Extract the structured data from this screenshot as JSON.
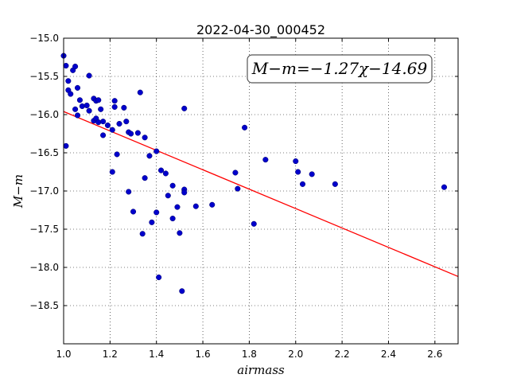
{
  "chart_data": {
    "type": "scatter",
    "title": "2022-04-30_000452",
    "xlabel": "airmass",
    "ylabel": "M−m",
    "xlim": [
      1.0,
      2.7
    ],
    "ylim": [
      -15.0,
      -19.0
    ],
    "y_inverted": true,
    "grid": true,
    "x_ticks": [
      1.0,
      1.2,
      1.4,
      1.6,
      1.8,
      2.0,
      2.2,
      2.4,
      2.6
    ],
    "x_tick_labels": [
      "1.0",
      "1.2",
      "1.4",
      "1.6",
      "1.8",
      "2.0",
      "2.2",
      "2.4",
      "2.6"
    ],
    "y_ticks": [
      -15.0,
      -15.5,
      -16.0,
      -16.5,
      -17.0,
      -17.5,
      -18.0,
      -18.5
    ],
    "y_tick_labels": [
      "−15.0",
      "−15.5",
      "−16.0",
      "−16.5",
      "−17.0",
      "−17.5",
      "−18.0",
      "−18.5"
    ],
    "fit_annotation": "M−m=−1.27χ−14.69",
    "fit": {
      "slope": -1.27,
      "intercept": -14.69,
      "color": "#ff0000"
    },
    "marker_color": "#0000cc",
    "points": [
      [
        1.0,
        -15.23
      ],
      [
        1.01,
        -15.36
      ],
      [
        1.02,
        -15.56
      ],
      [
        1.02,
        -15.68
      ],
      [
        1.03,
        -15.73
      ],
      [
        1.04,
        -15.42
      ],
      [
        1.05,
        -15.37
      ],
      [
        1.06,
        -15.65
      ],
      [
        1.05,
        -15.93
      ],
      [
        1.06,
        -16.01
      ],
      [
        1.07,
        -15.81
      ],
      [
        1.08,
        -15.89
      ],
      [
        1.1,
        -15.88
      ],
      [
        1.11,
        -15.95
      ],
      [
        1.11,
        -15.49
      ],
      [
        1.13,
        -15.79
      ],
      [
        1.14,
        -15.82
      ],
      [
        1.15,
        -15.81
      ],
      [
        1.13,
        -16.08
      ],
      [
        1.14,
        -16.05
      ],
      [
        1.15,
        -16.1
      ],
      [
        1.16,
        -15.93
      ],
      [
        1.17,
        -16.09
      ],
      [
        1.17,
        -16.27
      ],
      [
        1.19,
        -16.14
      ],
      [
        1.21,
        -16.2
      ],
      [
        1.22,
        -15.82
      ],
      [
        1.22,
        -15.9
      ],
      [
        1.23,
        -16.52
      ],
      [
        1.24,
        -16.12
      ],
      [
        1.26,
        -15.91
      ],
      [
        1.27,
        -16.09
      ],
      [
        1.28,
        -16.23
      ],
      [
        1.29,
        -16.25
      ],
      [
        1.32,
        -16.24
      ],
      [
        1.33,
        -15.71
      ],
      [
        1.35,
        -16.3
      ],
      [
        1.01,
        -16.41
      ],
      [
        1.21,
        -16.75
      ],
      [
        1.28,
        -17.01
      ],
      [
        1.3,
        -17.27
      ],
      [
        1.34,
        -17.56
      ],
      [
        1.35,
        -16.83
      ],
      [
        1.37,
        -16.54
      ],
      [
        1.38,
        -17.41
      ],
      [
        1.4,
        -16.48
      ],
      [
        1.4,
        -17.28
      ],
      [
        1.41,
        -18.13
      ],
      [
        1.42,
        -16.73
      ],
      [
        1.44,
        -16.77
      ],
      [
        1.45,
        -17.06
      ],
      [
        1.47,
        -17.36
      ],
      [
        1.47,
        -16.93
      ],
      [
        1.49,
        -17.21
      ],
      [
        1.5,
        -17.55
      ],
      [
        1.51,
        -18.31
      ],
      [
        1.52,
        -16.98
      ],
      [
        1.52,
        -17.02
      ],
      [
        1.52,
        -15.92
      ],
      [
        1.57,
        -17.2
      ],
      [
        1.64,
        -17.18
      ],
      [
        1.74,
        -16.76
      ],
      [
        1.75,
        -16.97
      ],
      [
        1.78,
        -16.17
      ],
      [
        1.82,
        -17.43
      ],
      [
        1.87,
        -16.59
      ],
      [
        2.0,
        -16.61
      ],
      [
        2.01,
        -16.75
      ],
      [
        2.03,
        -16.91
      ],
      [
        2.07,
        -16.78
      ],
      [
        2.17,
        -16.91
      ],
      [
        2.64,
        -16.95
      ]
    ]
  }
}
